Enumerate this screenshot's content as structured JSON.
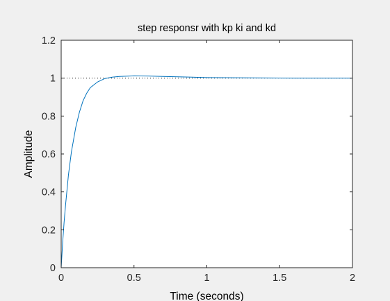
{
  "chart_data": {
    "type": "line",
    "title": "step responsr with kp ki and kd",
    "xlabel": "Time (seconds)",
    "ylabel": "Amplitude",
    "xlim": [
      0,
      2
    ],
    "ylim": [
      0,
      1.2
    ],
    "x_ticks": [
      0,
      0.5,
      1,
      1.5,
      2
    ],
    "x_tick_labels": [
      "0",
      "0.5",
      "1",
      "1.5",
      "2"
    ],
    "y_ticks": [
      0,
      0.2,
      0.4,
      0.6,
      0.8,
      1,
      1.2
    ],
    "y_tick_labels": [
      "0",
      "0.2",
      "0.4",
      "0.6",
      "0.8",
      "1",
      "1.2"
    ],
    "grid": false,
    "reference_line": {
      "y": 1,
      "style": "dotted"
    },
    "series": [
      {
        "color": "#0072bd",
        "x": [
          0,
          0.01,
          0.02,
          0.03,
          0.05,
          0.07,
          0.1,
          0.125,
          0.15,
          0.175,
          0.2,
          0.25,
          0.3,
          0.35,
          0.4,
          0.5,
          0.6,
          0.7,
          0.8,
          0.9,
          1.0,
          1.2,
          1.4,
          1.6,
          1.8,
          2.0
        ],
        "y": [
          0,
          0.13,
          0.24,
          0.33,
          0.49,
          0.61,
          0.74,
          0.82,
          0.88,
          0.92,
          0.95,
          0.98,
          0.998,
          1.005,
          1.009,
          1.012,
          1.011,
          1.009,
          1.007,
          1.005,
          1.003,
          1.002,
          1.001,
          1.0,
          1.0,
          1.0
        ]
      }
    ]
  }
}
